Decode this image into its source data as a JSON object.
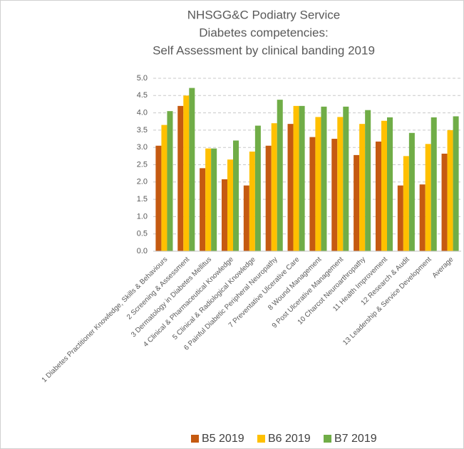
{
  "chart_data": {
    "type": "bar",
    "title": [
      "NHSGG&C Podiatry Service",
      "Diabetes competencies:",
      "Self Assessment by clinical banding 2019"
    ],
    "categories": [
      "1 Diabetes Practitioner Knowledge, Skills & Behaviours",
      "2 Screening & Assessment",
      "3 Dermatology in Diabetes Mellitus",
      "4 Clinical & Pharmaceutical Knowledge",
      "5 Clinical & Radiological Knowledge",
      "6 Painful Diabetic Peripheral Neuropathy",
      "7 Preventative Ulcerative Care",
      "8 Wound Management",
      "9 Post Ulcerative Management",
      "10 Charcot Neuroarthropathy",
      "11 Health Improvement",
      "12 Research & Audit",
      "13 Leadership & Service Development",
      "Average"
    ],
    "series": [
      {
        "name": "B5 2019",
        "color": "#c55a11",
        "values": [
          3.05,
          4.2,
          2.4,
          2.08,
          1.9,
          3.05,
          3.68,
          3.3,
          3.25,
          2.78,
          3.17,
          1.9,
          1.93,
          2.82
        ]
      },
      {
        "name": "B6 2019",
        "color": "#ffc000",
        "values": [
          3.65,
          4.5,
          2.97,
          2.65,
          2.88,
          3.7,
          4.2,
          3.88,
          3.88,
          3.68,
          3.77,
          2.75,
          3.1,
          3.5
        ]
      },
      {
        "name": "B7 2019",
        "color": "#70ad47",
        "values": [
          4.05,
          4.72,
          2.97,
          3.2,
          3.63,
          4.38,
          4.2,
          4.18,
          4.18,
          4.08,
          3.87,
          3.42,
          3.87,
          3.9
        ]
      }
    ],
    "ylim": [
      0,
      5
    ],
    "yticks": [
      {
        "value": 0,
        "label": "0.0"
      },
      {
        "value": 0.5,
        "label": "0.5"
      },
      {
        "value": 1,
        "label": "1.0"
      },
      {
        "value": 1.5,
        "label": "1.5"
      },
      {
        "value": 2,
        "label": "2.0"
      },
      {
        "value": 2.5,
        "label": "2.5"
      },
      {
        "value": 3,
        "label": "3.0"
      },
      {
        "value": 3.5,
        "label": "3.5"
      },
      {
        "value": 4,
        "label": "4.0"
      },
      {
        "value": 4.5,
        "label": "4.5"
      },
      {
        "value": 5,
        "label": "5.0"
      }
    ],
    "grid": true,
    "legend": "bottom"
  }
}
